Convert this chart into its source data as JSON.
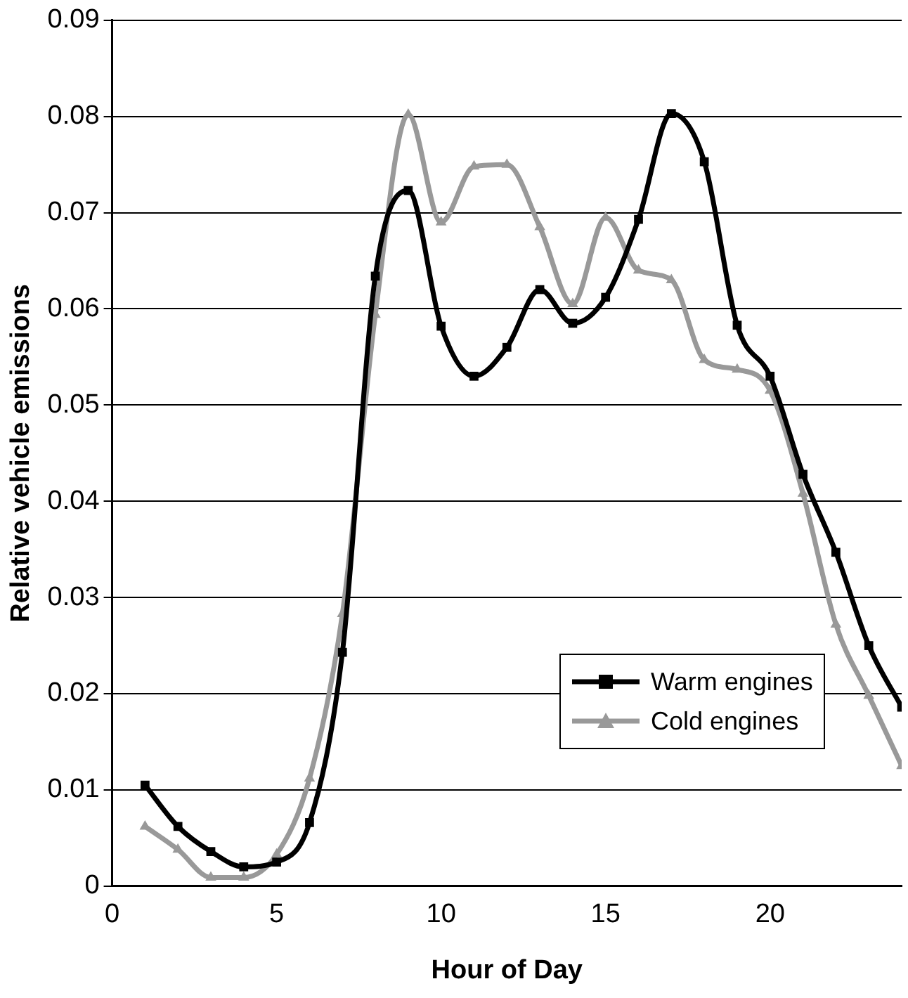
{
  "chart_data": {
    "type": "line",
    "xlabel": "Hour of Day",
    "ylabel": "Relative vehicle emissions",
    "x": [
      1,
      2,
      3,
      4,
      5,
      6,
      7,
      8,
      9,
      10,
      11,
      12,
      13,
      14,
      15,
      16,
      17,
      18,
      19,
      20,
      21,
      22,
      23,
      24
    ],
    "series": [
      {
        "name": "Warm engines",
        "color": "#000000",
        "marker": "square",
        "values": [
          0.0105,
          0.0062,
          0.0036,
          0.002,
          0.0025,
          0.0066,
          0.0243,
          0.0634,
          0.0723,
          0.0582,
          0.053,
          0.056,
          0.062,
          0.0585,
          0.0612,
          0.0693,
          0.0803,
          0.0753,
          0.0583,
          0.053,
          0.0428,
          0.0347,
          0.025,
          0.0186
        ]
      },
      {
        "name": "Cold engines",
        "color": "#999999",
        "marker": "triangle",
        "values": [
          0.0062,
          0.0038,
          0.0009,
          0.0009,
          0.0033,
          0.0112,
          0.0283,
          0.0594,
          0.0802,
          0.069,
          0.0748,
          0.075,
          0.0685,
          0.0605,
          0.0695,
          0.064,
          0.063,
          0.0547,
          0.0537,
          0.0515,
          0.0408,
          0.0272,
          0.0198,
          0.0125
        ]
      }
    ],
    "xlim": [
      0,
      24
    ],
    "xticks": [
      0,
      5,
      10,
      15,
      20
    ],
    "ylim": [
      0,
      0.09
    ],
    "yticks": [
      0,
      0.01,
      0.02,
      0.03,
      0.04,
      0.05,
      0.06,
      0.07,
      0.08,
      0.09
    ],
    "grid": "y",
    "legend": "right",
    "line_style": "solid"
  }
}
